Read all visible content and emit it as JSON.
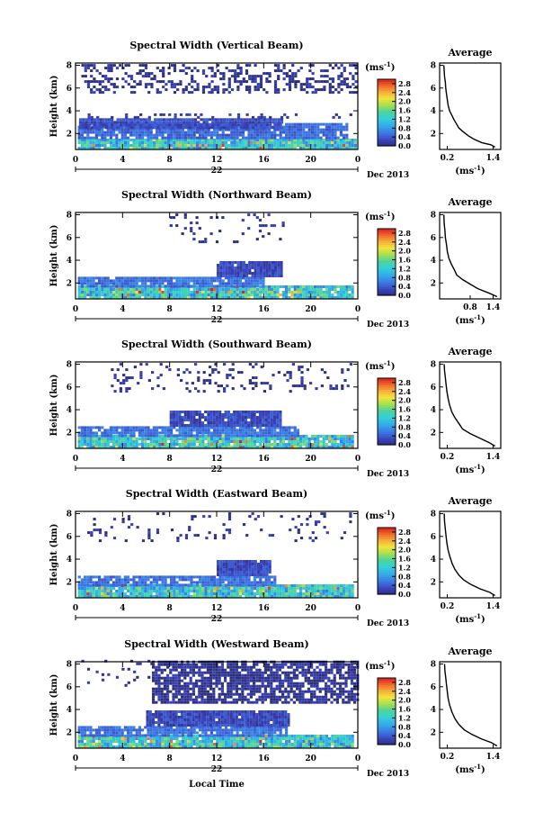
{
  "figure": {
    "xlabel": "Local Time",
    "date_label": "Dec 2013",
    "day_label": "22",
    "ylabel": "Height (km)",
    "unit_base": "(ms",
    "unit_exp": "-1",
    "unit_close": ")",
    "avg_title": "Average"
  },
  "chart_data": [
    {
      "type": "heatmap",
      "title": "Spectral Width (Vertical Beam)",
      "xlabel": "",
      "ylabel": "Height (km)",
      "x_ticks": [
        "0",
        "4",
        "8",
        "12",
        "16",
        "20",
        "0"
      ],
      "xlim": [
        0,
        24
      ],
      "y_ticks": [
        "2",
        "4",
        "6",
        "8"
      ],
      "ylim": [
        0.6,
        8.2
      ],
      "colorbar": {
        "label": "(ms-1)",
        "ticks": [
          "0.0",
          "0.4",
          "0.8",
          "1.2",
          "1.6",
          "2.0",
          "2.4",
          "2.8"
        ],
        "range": [
          0,
          3.0
        ]
      },
      "layers": [
        {
          "t0": 0.2,
          "t1": 23.8,
          "h0": 0.6,
          "h1": 1.5,
          "level": 1.2,
          "fill": 0.97
        },
        {
          "t0": 0.2,
          "t1": 23.0,
          "h0": 1.5,
          "h1": 2.7,
          "level": 0.5,
          "fill": 0.88
        },
        {
          "t0": 0.3,
          "t1": 17.5,
          "h0": 2.4,
          "h1": 3.3,
          "level": 0.3,
          "fill": 0.96
        },
        {
          "t0": 0.3,
          "t1": 23.5,
          "h0": 3.3,
          "h1": 3.7,
          "level": 0.2,
          "fill": 0.25
        },
        {
          "t0": 0.5,
          "t1": 23.8,
          "h0": 5.5,
          "h1": 8.0,
          "level": 0.1,
          "fill": 0.32
        }
      ],
      "average": {
        "title": "Average",
        "x_ticks": [
          "0.2",
          "1.4"
        ],
        "y_ticks": [
          "2",
          "4",
          "6",
          "8"
        ],
        "xlim": [
          0,
          1.6
        ],
        "ylim": [
          0.6,
          8.2
        ],
        "xlabel": "(ms-1)",
        "profile": [
          [
            1.45,
            0.8
          ],
          [
            1.35,
            1.0
          ],
          [
            1.1,
            1.2
          ],
          [
            0.9,
            1.5
          ],
          [
            0.75,
            1.8
          ],
          [
            0.6,
            2.2
          ],
          [
            0.5,
            2.5
          ],
          [
            0.45,
            2.8
          ],
          [
            0.38,
            3.2
          ],
          [
            0.32,
            3.6
          ],
          [
            0.26,
            4.0
          ],
          [
            0.22,
            4.5
          ],
          [
            0.2,
            5.0
          ],
          [
            0.18,
            5.5
          ],
          [
            0.16,
            6.0
          ],
          [
            0.15,
            6.5
          ],
          [
            0.13,
            7.0
          ],
          [
            0.12,
            7.5
          ],
          [
            0.11,
            8.0
          ]
        ]
      }
    },
    {
      "type": "heatmap",
      "title": "Spectral Width (Northward Beam)",
      "xlabel": "",
      "ylabel": "Height (km)",
      "x_ticks": [
        "0",
        "4",
        "8",
        "12",
        "16",
        "20",
        "0"
      ],
      "xlim": [
        0,
        24
      ],
      "y_ticks": [
        "2",
        "4",
        "6",
        "8"
      ],
      "ylim": [
        0.6,
        8.2
      ],
      "colorbar": {
        "label": "(ms-1)",
        "ticks": [
          "0.0",
          "0.4",
          "0.8",
          "1.2",
          "1.6",
          "2.0",
          "2.4",
          "2.8"
        ],
        "range": [
          0,
          3.0
        ]
      },
      "layers": [
        {
          "t0": 0.2,
          "t1": 23.5,
          "h0": 0.6,
          "h1": 1.6,
          "level": 1.2,
          "fill": 0.96
        },
        {
          "t0": 0.2,
          "t1": 16.0,
          "h0": 1.6,
          "h1": 2.5,
          "level": 0.55,
          "fill": 0.9
        },
        {
          "t0": 12.0,
          "t1": 17.5,
          "h0": 2.5,
          "h1": 3.7,
          "level": 0.3,
          "fill": 0.95
        },
        {
          "t0": 8.0,
          "t1": 18.0,
          "h0": 5.5,
          "h1": 8.0,
          "level": 0.1,
          "fill": 0.1
        }
      ],
      "average": {
        "title": "Average",
        "x_ticks": [
          "0.8",
          "1.4"
        ],
        "y_ticks": [
          "2",
          "4",
          "6",
          "8"
        ],
        "xlim": [
          0,
          1.6
        ],
        "ylim": [
          0.6,
          8.2
        ],
        "xlabel": "(ms-1)",
        "profile": [
          [
            1.5,
            0.8
          ],
          [
            1.3,
            1.1
          ],
          [
            1.0,
            1.5
          ],
          [
            0.8,
            1.9
          ],
          [
            0.6,
            2.3
          ],
          [
            0.45,
            2.7
          ],
          [
            0.38,
            3.2
          ],
          [
            0.3,
            3.7
          ],
          [
            0.24,
            4.2
          ],
          [
            0.2,
            4.8
          ],
          [
            0.18,
            5.4
          ],
          [
            0.15,
            6.0
          ],
          [
            0.14,
            6.6
          ],
          [
            0.12,
            7.2
          ],
          [
            0.11,
            8.0
          ]
        ]
      }
    },
    {
      "type": "heatmap",
      "title": "Spectral Width (Southward Beam)",
      "xlabel": "",
      "ylabel": "Height (km)",
      "x_ticks": [
        "0",
        "4",
        "8",
        "12",
        "16",
        "20",
        "0"
      ],
      "xlim": [
        0,
        24
      ],
      "y_ticks": [
        "2",
        "4",
        "6",
        "8"
      ],
      "ylim": [
        0.6,
        8.2
      ],
      "colorbar": {
        "label": "(ms-1)",
        "ticks": [
          "0.0",
          "0.4",
          "0.8",
          "1.2",
          "1.6",
          "2.0",
          "2.4",
          "2.8"
        ],
        "range": [
          0,
          3.0
        ]
      },
      "layers": [
        {
          "t0": 0.2,
          "t1": 23.5,
          "h0": 0.6,
          "h1": 1.6,
          "level": 1.2,
          "fill": 0.96
        },
        {
          "t0": 0.2,
          "t1": 19.0,
          "h0": 1.6,
          "h1": 2.5,
          "level": 0.55,
          "fill": 0.9
        },
        {
          "t0": 8.0,
          "t1": 17.5,
          "h0": 2.5,
          "h1": 3.7,
          "level": 0.3,
          "fill": 0.92
        },
        {
          "t0": 3.0,
          "t1": 23.5,
          "h0": 5.5,
          "h1": 8.0,
          "level": 0.1,
          "fill": 0.16
        }
      ],
      "average": {
        "title": "Average",
        "x_ticks": [
          "0.2",
          "1.4"
        ],
        "y_ticks": [
          "2",
          "4",
          "6",
          "8"
        ],
        "xlim": [
          0,
          1.6
        ],
        "ylim": [
          0.6,
          8.2
        ],
        "xlabel": "(ms-1)",
        "profile": [
          [
            1.45,
            0.8
          ],
          [
            1.3,
            1.1
          ],
          [
            1.05,
            1.5
          ],
          [
            0.8,
            1.9
          ],
          [
            0.6,
            2.3
          ],
          [
            0.5,
            2.8
          ],
          [
            0.4,
            3.3
          ],
          [
            0.32,
            3.8
          ],
          [
            0.26,
            4.4
          ],
          [
            0.22,
            5.0
          ],
          [
            0.19,
            5.6
          ],
          [
            0.17,
            6.2
          ],
          [
            0.15,
            6.8
          ],
          [
            0.13,
            7.4
          ],
          [
            0.12,
            8.0
          ]
        ]
      }
    },
    {
      "type": "heatmap",
      "title": "Spectral Width (Eastward Beam)",
      "xlabel": "",
      "ylabel": "Height (km)",
      "x_ticks": [
        "0",
        "4",
        "8",
        "12",
        "16",
        "20",
        "0"
      ],
      "xlim": [
        0,
        24
      ],
      "y_ticks": [
        "2",
        "4",
        "6",
        "8"
      ],
      "ylim": [
        0.6,
        8.2
      ],
      "colorbar": {
        "label": "(ms-1)",
        "ticks": [
          "0.0",
          "0.4",
          "0.8",
          "1.2",
          "1.6",
          "2.0",
          "2.4",
          "2.8"
        ],
        "range": [
          0,
          3.0
        ]
      },
      "layers": [
        {
          "t0": 0.2,
          "t1": 23.5,
          "h0": 0.6,
          "h1": 1.6,
          "level": 1.2,
          "fill": 0.96
        },
        {
          "t0": 0.2,
          "t1": 17.0,
          "h0": 1.6,
          "h1": 2.5,
          "level": 0.55,
          "fill": 0.9
        },
        {
          "t0": 12.0,
          "t1": 16.5,
          "h0": 2.5,
          "h1": 3.7,
          "level": 0.3,
          "fill": 0.95
        },
        {
          "t0": 1.0,
          "t1": 23.5,
          "h0": 5.5,
          "h1": 8.0,
          "level": 0.1,
          "fill": 0.08
        }
      ],
      "average": {
        "title": "Average",
        "x_ticks": [
          "0.2",
          "1.4"
        ],
        "y_ticks": [
          "2",
          "4",
          "6",
          "8"
        ],
        "xlim": [
          0,
          1.6
        ],
        "ylim": [
          0.6,
          8.2
        ],
        "xlabel": "(ms-1)",
        "profile": [
          [
            1.45,
            0.8
          ],
          [
            1.3,
            1.1
          ],
          [
            1.05,
            1.4
          ],
          [
            0.8,
            1.8
          ],
          [
            0.62,
            2.2
          ],
          [
            0.5,
            2.6
          ],
          [
            0.4,
            3.1
          ],
          [
            0.33,
            3.6
          ],
          [
            0.27,
            4.2
          ],
          [
            0.22,
            4.8
          ],
          [
            0.19,
            5.4
          ],
          [
            0.17,
            6.0
          ],
          [
            0.15,
            6.6
          ],
          [
            0.13,
            7.3
          ],
          [
            0.12,
            8.0
          ]
        ]
      }
    },
    {
      "type": "heatmap",
      "title": "Spectral Width (Westward Beam)",
      "xlabel": "Local Time",
      "ylabel": "Height (km)",
      "x_ticks": [
        "0",
        "4",
        "8",
        "12",
        "16",
        "20",
        "0"
      ],
      "xlim": [
        0,
        24
      ],
      "y_ticks": [
        "2",
        "4",
        "6",
        "8"
      ],
      "ylim": [
        0.6,
        8.2
      ],
      "colorbar": {
        "label": "(ms-1)",
        "ticks": [
          "0.0",
          "0.4",
          "0.8",
          "1.2",
          "1.6",
          "2.0",
          "2.4",
          "2.8"
        ],
        "range": [
          0,
          3.0
        ]
      },
      "layers": [
        {
          "t0": 0.2,
          "t1": 23.5,
          "h0": 0.6,
          "h1": 1.6,
          "level": 1.2,
          "fill": 0.96
        },
        {
          "t0": 0.2,
          "t1": 18.0,
          "h0": 1.6,
          "h1": 2.5,
          "level": 0.55,
          "fill": 0.9
        },
        {
          "t0": 6.0,
          "t1": 18.0,
          "h0": 2.5,
          "h1": 3.8,
          "level": 0.3,
          "fill": 0.95
        },
        {
          "t0": 6.5,
          "t1": 24.0,
          "h0": 4.5,
          "h1": 8.2,
          "level": 0.1,
          "fill": 0.75
        },
        {
          "t0": 0.5,
          "t1": 6.5,
          "h0": 6.0,
          "h1": 8.2,
          "level": 0.1,
          "fill": 0.1
        }
      ],
      "average": {
        "title": "Average",
        "x_ticks": [
          "0.2",
          "1.4"
        ],
        "y_ticks": [
          "2",
          "4",
          "6",
          "8"
        ],
        "xlim": [
          0,
          1.6
        ],
        "ylim": [
          0.6,
          8.2
        ],
        "xlabel": "(ms-1)",
        "profile": [
          [
            1.5,
            0.8
          ],
          [
            1.35,
            1.1
          ],
          [
            1.1,
            1.4
          ],
          [
            0.85,
            1.8
          ],
          [
            0.65,
            2.2
          ],
          [
            0.5,
            2.7
          ],
          [
            0.4,
            3.2
          ],
          [
            0.32,
            3.8
          ],
          [
            0.26,
            4.4
          ],
          [
            0.22,
            5.0
          ],
          [
            0.2,
            5.6
          ],
          [
            0.18,
            6.2
          ],
          [
            0.16,
            6.8
          ],
          [
            0.14,
            7.4
          ],
          [
            0.13,
            8.0
          ]
        ]
      }
    }
  ]
}
